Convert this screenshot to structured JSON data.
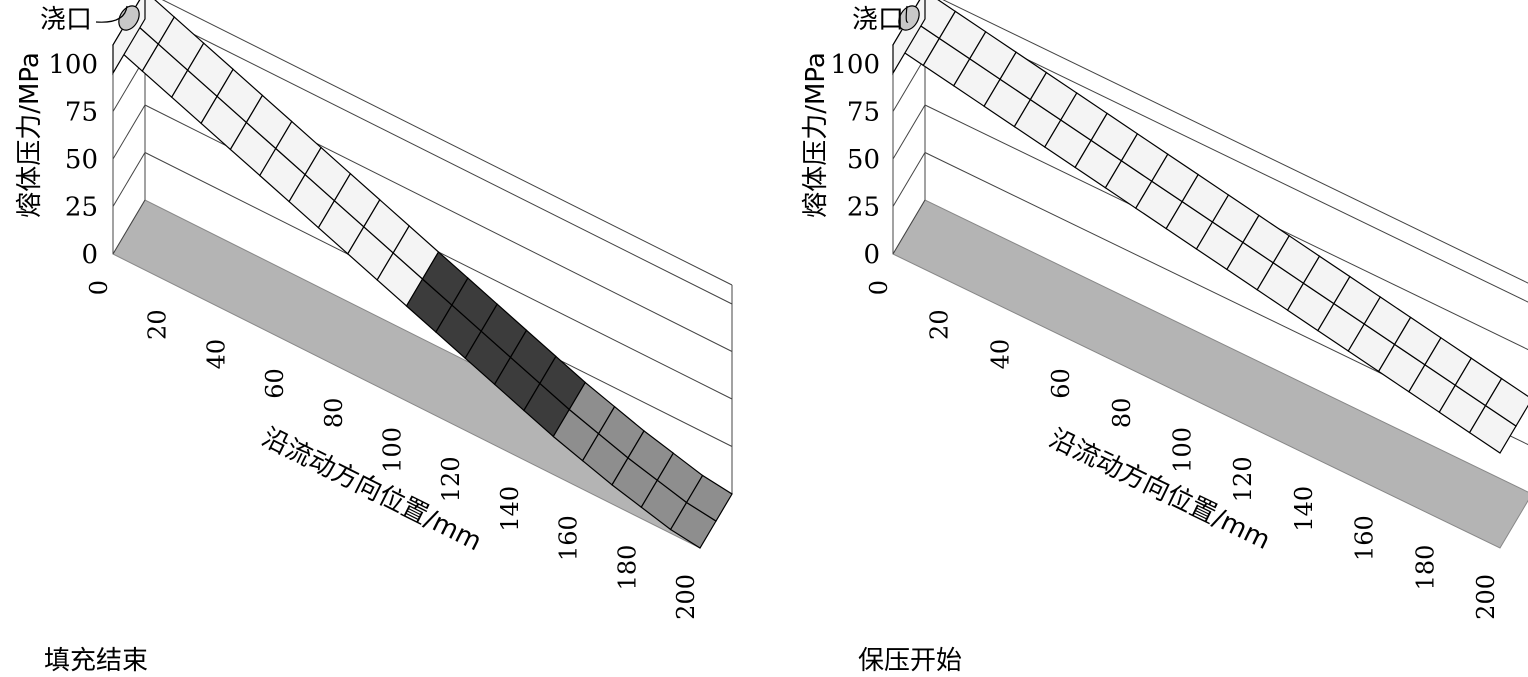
{
  "chart_data": [
    {
      "type": "3d-bar-strip",
      "caption": "填充结束",
      "gate_label": "浇口",
      "ylabel": "熔体压力/MPa",
      "xlabel": "沿流动方向位置/mm",
      "y_ticks": [
        "0",
        "25",
        "50",
        "75",
        "100"
      ],
      "x_ticks": [
        "0",
        "20",
        "40",
        "60",
        "80",
        "100",
        "120",
        "140",
        "160",
        "180",
        "200"
      ],
      "xlim": [
        0,
        200
      ],
      "ylim": [
        0,
        110
      ],
      "segments": [
        {
          "x": 0,
          "pressure": 110,
          "shade": "#f4f4f4"
        },
        {
          "x": 10,
          "pressure": 104,
          "shade": "#f4f4f4"
        },
        {
          "x": 20,
          "pressure": 98,
          "shade": "#f4f4f4"
        },
        {
          "x": 30,
          "pressure": 92,
          "shade": "#f4f4f4"
        },
        {
          "x": 40,
          "pressure": 86,
          "shade": "#f4f4f4"
        },
        {
          "x": 50,
          "pressure": 80,
          "shade": "#f4f4f4"
        },
        {
          "x": 60,
          "pressure": 74,
          "shade": "#f4f4f4"
        },
        {
          "x": 70,
          "pressure": 68,
          "shade": "#f4f4f4"
        },
        {
          "x": 80,
          "pressure": 62,
          "shade": "#f4f4f4"
        },
        {
          "x": 90,
          "pressure": 56,
          "shade": "#f4f4f4"
        },
        {
          "x": 100,
          "pressure": 50,
          "shade": "#3c3c3c"
        },
        {
          "x": 110,
          "pressure": 44,
          "shade": "#3c3c3c"
        },
        {
          "x": 120,
          "pressure": 38,
          "shade": "#3c3c3c"
        },
        {
          "x": 130,
          "pressure": 32,
          "shade": "#3c3c3c"
        },
        {
          "x": 140,
          "pressure": 26,
          "shade": "#3c3c3c"
        },
        {
          "x": 150,
          "pressure": 20,
          "shade": "#8e8e8e"
        },
        {
          "x": 160,
          "pressure": 15,
          "shade": "#8e8e8e"
        },
        {
          "x": 170,
          "pressure": 10,
          "shade": "#8e8e8e"
        },
        {
          "x": 180,
          "pressure": 6,
          "shade": "#8e8e8e"
        },
        {
          "x": 190,
          "pressure": 2,
          "shade": "#8e8e8e"
        }
      ]
    },
    {
      "type": "3d-bar-strip",
      "caption": "保压开始",
      "gate_label": "浇口",
      "ylabel": "熔体压力/MPa",
      "xlabel": "沿流动方向位置/mm",
      "y_ticks": [
        "0",
        "25",
        "50",
        "75",
        "100"
      ],
      "x_ticks": [
        "0",
        "20",
        "40",
        "60",
        "80",
        "100",
        "120",
        "140",
        "160",
        "180",
        "200"
      ],
      "xlim": [
        0,
        200
      ],
      "ylim": [
        0,
        110
      ],
      "segments": [
        {
          "x": 0,
          "pressure": 110,
          "shade": "#f4f4f4"
        },
        {
          "x": 10,
          "pressure": 107,
          "shade": "#f4f4f4"
        },
        {
          "x": 20,
          "pressure": 104,
          "shade": "#f4f4f4"
        },
        {
          "x": 30,
          "pressure": 101,
          "shade": "#f4f4f4"
        },
        {
          "x": 40,
          "pressure": 98,
          "shade": "#f4f4f4"
        },
        {
          "x": 50,
          "pressure": 95,
          "shade": "#f4f4f4"
        },
        {
          "x": 60,
          "pressure": 92,
          "shade": "#f4f4f4"
        },
        {
          "x": 70,
          "pressure": 89,
          "shade": "#f4f4f4"
        },
        {
          "x": 80,
          "pressure": 86,
          "shade": "#f4f4f4"
        },
        {
          "x": 90,
          "pressure": 83,
          "shade": "#f4f4f4"
        },
        {
          "x": 100,
          "pressure": 80,
          "shade": "#f4f4f4"
        },
        {
          "x": 110,
          "pressure": 77,
          "shade": "#f4f4f4"
        },
        {
          "x": 120,
          "pressure": 74,
          "shade": "#f4f4f4"
        },
        {
          "x": 130,
          "pressure": 71,
          "shade": "#f4f4f4"
        },
        {
          "x": 140,
          "pressure": 68,
          "shade": "#f4f4f4"
        },
        {
          "x": 150,
          "pressure": 65,
          "shade": "#f4f4f4"
        },
        {
          "x": 160,
          "pressure": 62,
          "shade": "#f4f4f4"
        },
        {
          "x": 170,
          "pressure": 59,
          "shade": "#f4f4f4"
        },
        {
          "x": 180,
          "pressure": 56,
          "shade": "#f4f4f4"
        },
        {
          "x": 190,
          "pressure": 53,
          "shade": "#f4f4f4"
        }
      ]
    }
  ]
}
